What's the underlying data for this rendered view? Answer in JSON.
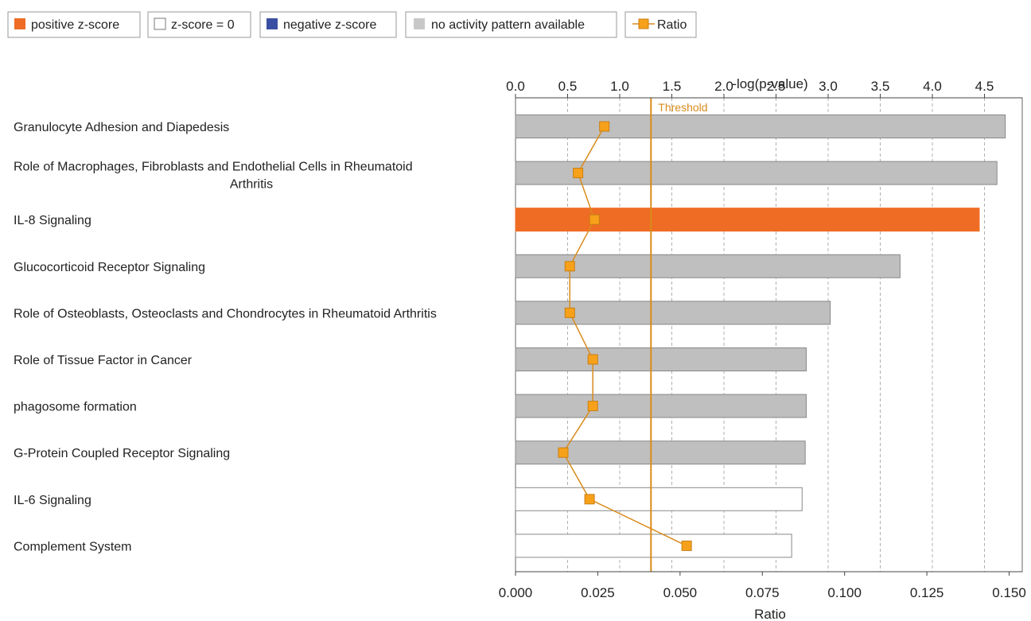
{
  "legend": {
    "items": [
      {
        "label": "positive z-score",
        "swatch": "#EE6C24",
        "kind": "fill"
      },
      {
        "label": "z-score = 0",
        "swatch": "#FFFFFF",
        "kind": "outline"
      },
      {
        "label": "negative z-score",
        "swatch": "#3950A2",
        "kind": "fill"
      },
      {
        "label": "no activity pattern available",
        "swatch": "#BFBFBF",
        "kind": "fill"
      },
      {
        "label": "Ratio",
        "swatch": "#F7A11A",
        "kind": "line-marker"
      }
    ]
  },
  "chart_data": {
    "type": "bar",
    "orientation": "horizontal",
    "top_axis": {
      "label": "-log(p-value)",
      "range": [
        0,
        4.83
      ],
      "ticks": [
        "0.0",
        "0.5",
        "1.0",
        "1.5",
        "2.0",
        "2.5",
        "3.0",
        "3.5",
        "4.0",
        "4.5"
      ],
      "tick_values": [
        0,
        0.5,
        1.0,
        1.5,
        2.0,
        2.5,
        3.0,
        3.5,
        4.0,
        4.5
      ]
    },
    "bottom_axis": {
      "label": "Ratio",
      "range": [
        0,
        0.155
      ],
      "ticks": [
        "0.000",
        "0.025",
        "0.050",
        "0.075",
        "0.100",
        "0.125",
        "0.150"
      ],
      "tick_values": [
        0,
        0.025,
        0.05,
        0.075,
        0.1,
        0.125,
        0.15
      ]
    },
    "grid": "vertical dashed at top-axis ticks",
    "threshold": {
      "label": "Threshold",
      "value": 1.3,
      "color": "#D98B1C"
    },
    "categories": [
      "Granulocyte Adhesion and Diapedesis",
      "Role of Macrophages, Fibroblasts and Endothelial Cells in Rheumatoid Arthritis",
      "IL-8 Signaling",
      "Glucocorticoid Receptor Signaling",
      "Role of Osteoblasts, Osteoclasts and Chondrocytes in Rheumatoid Arthritis",
      "Role of Tissue Factor in Cancer",
      "phagosome formation",
      "G-Protein Coupled Receptor Signaling",
      "IL-6 Signaling",
      "Complement System"
    ],
    "category_label_lines": [
      [
        "Granulocyte Adhesion and Diapedesis"
      ],
      [
        "Role of Macrophages, Fibroblasts and Endothelial Cells in Rheumatoid",
        "Arthritis"
      ],
      [
        "IL-8 Signaling"
      ],
      [
        "Glucocorticoid Receptor Signaling"
      ],
      [
        "Role of Osteoblasts, Osteoclasts and Chondrocytes in Rheumatoid Arthritis"
      ],
      [
        "Role of Tissue Factor in Cancer"
      ],
      [
        "phagosome formation"
      ],
      [
        "G-Protein Coupled Receptor Signaling"
      ],
      [
        "IL-6 Signaling"
      ],
      [
        "Complement System"
      ]
    ],
    "series": [
      {
        "name": "-log(p-value)",
        "values": [
          4.7,
          4.62,
          4.45,
          3.69,
          3.02,
          2.79,
          2.79,
          2.78,
          2.75,
          2.65
        ],
        "status": [
          "none",
          "none",
          "positive",
          "none",
          "none",
          "none",
          "none",
          "none",
          "zero",
          "zero"
        ]
      },
      {
        "name": "Ratio",
        "values": [
          0.027,
          0.019,
          0.024,
          0.0165,
          0.0165,
          0.0235,
          0.0235,
          0.0145,
          0.0225,
          0.052
        ]
      }
    ],
    "colors": {
      "positive": "#EE6C24",
      "negative": "#3950A2",
      "none": "#BFBFBF",
      "zero": "#FFFFFF",
      "bar_border": "#888888",
      "ratio_line": "#D98B1C",
      "ratio_marker": "#F7A11A",
      "grid": "#B0B0B0"
    }
  }
}
